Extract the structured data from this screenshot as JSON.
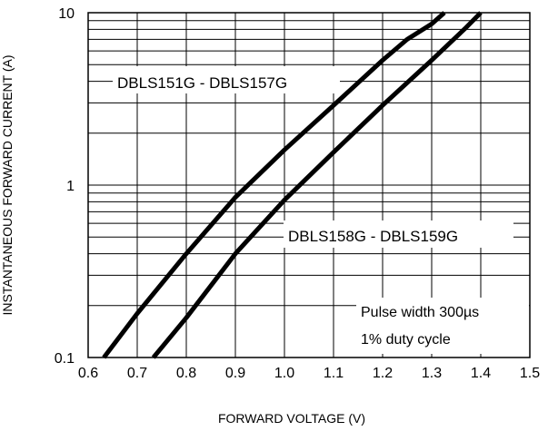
{
  "chart_data": {
    "type": "line",
    "xlabel": "FORWARD VOLTAGE (V)",
    "ylabel": "INSTANTANEOUS FORWARD CURRENT (A)",
    "xlim": [
      0.6,
      1.5
    ],
    "ylim": [
      0.1,
      10
    ],
    "yscale": "log",
    "grid": true,
    "x_ticks": [
      "0.6",
      "0.7",
      "0.8",
      "0.9",
      "1.0",
      "1.1",
      "1.2",
      "1.3",
      "1.4",
      "1.5"
    ],
    "y_ticks": [
      "0.1",
      "1",
      "10"
    ],
    "series": [
      {
        "name": "DBLS151G - DBLS157G",
        "x": [
          0.632,
          0.7,
          0.8,
          0.9,
          1.0,
          1.1,
          1.2,
          1.25,
          1.3,
          1.326
        ],
        "y": [
          0.1,
          0.18,
          0.4,
          0.85,
          1.6,
          2.9,
          5.3,
          7.0,
          8.6,
          10.0
        ]
      },
      {
        "name": "DBLS158G - DBLS159G",
        "x": [
          0.733,
          0.8,
          0.9,
          1.0,
          1.1,
          1.2,
          1.3,
          1.37,
          1.4
        ],
        "y": [
          0.1,
          0.17,
          0.4,
          0.82,
          1.55,
          2.9,
          5.3,
          8.2,
          10.0
        ]
      }
    ],
    "annotations": {
      "series1_label": "DBLS151G - DBLS157G",
      "series2_label": "DBLS158G - DBLS159G",
      "note_line1": "Pulse width 300µs",
      "note_line2": "1% duty cycle"
    }
  }
}
